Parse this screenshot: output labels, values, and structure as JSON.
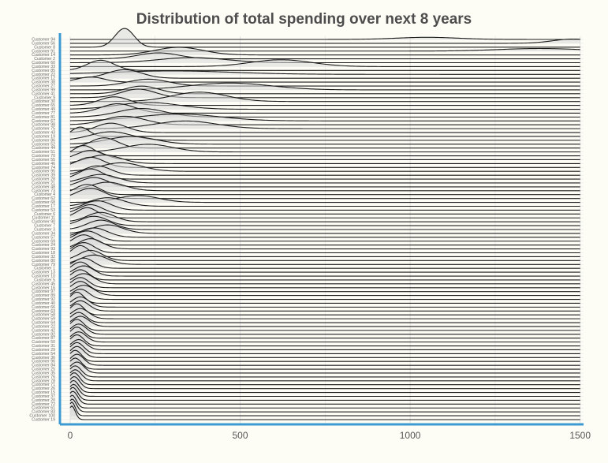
{
  "chart_data": {
    "type": "ridgeline",
    "title": "Distribution of total spending over next 8 years",
    "xlabel": "",
    "ylabel": "",
    "xlim": [
      -30,
      1510
    ],
    "x_ticks": [
      0,
      500,
      1000,
      1500
    ],
    "x_tick_labels": [
      "0",
      "500",
      "1000",
      "1500"
    ],
    "grid": true,
    "series_order_top_to_bottom": [
      {
        "name": "Customer 94",
        "mode": 1050,
        "spread": 90,
        "height": 0.25
      },
      {
        "name": "Customer 56",
        "mode": 1480,
        "spread": 60,
        "height": 0.5
      },
      {
        "name": "Customer 8",
        "mode": 160,
        "spread": 28,
        "height": 2.2
      },
      {
        "name": "Customer 91",
        "mode": 1380,
        "spread": 120,
        "height": 0.3
      },
      {
        "name": "Customer 14",
        "mode": 320,
        "spread": 70,
        "height": 0.9
      },
      {
        "name": "Customer 2",
        "mode": 260,
        "spread": 60,
        "height": 0.7
      },
      {
        "name": "Customer 60",
        "mode": 360,
        "spread": 100,
        "height": 0.6
      },
      {
        "name": "Customer 33",
        "mode": 620,
        "spread": 90,
        "height": 0.8
      },
      {
        "name": "Customer 85",
        "mode": 90,
        "spread": 40,
        "height": 1.2
      },
      {
        "name": "Customer 22",
        "mode": 300,
        "spread": 180,
        "height": 0.4
      },
      {
        "name": "Customer 12",
        "mode": 160,
        "spread": 50,
        "height": 1.0
      },
      {
        "name": "Customer 38",
        "mode": 60,
        "spread": 40,
        "height": 0.6
      },
      {
        "name": "Customer 27",
        "mode": 230,
        "spread": 60,
        "height": 0.8
      },
      {
        "name": "Customer 99",
        "mode": 470,
        "spread": 120,
        "height": 0.8
      },
      {
        "name": "Customer 41",
        "mode": 210,
        "spread": 50,
        "height": 0.9
      },
      {
        "name": "Customer 9",
        "mode": 200,
        "spread": 50,
        "height": 1.0
      },
      {
        "name": "Customer 30",
        "mode": 380,
        "spread": 80,
        "height": 1.1
      },
      {
        "name": "Customer 65",
        "mode": 130,
        "spread": 45,
        "height": 1.0
      },
      {
        "name": "Customer 49",
        "mode": 230,
        "spread": 90,
        "height": 0.8
      },
      {
        "name": "Customer 77",
        "mode": 140,
        "spread": 50,
        "height": 1.1
      },
      {
        "name": "Customer 81",
        "mode": 210,
        "spread": 70,
        "height": 1.0
      },
      {
        "name": "Customer 67",
        "mode": 320,
        "spread": 120,
        "height": 0.8
      },
      {
        "name": "Customer 98",
        "mode": 160,
        "spread": 60,
        "height": 1.0
      },
      {
        "name": "Customer 75",
        "mode": 340,
        "spread": 90,
        "height": 0.9
      },
      {
        "name": "Customer 43",
        "mode": 120,
        "spread": 45,
        "height": 1.1
      },
      {
        "name": "Customer 19",
        "mode": 30,
        "spread": 25,
        "height": 1.1
      },
      {
        "name": "Customer 86",
        "mode": 120,
        "spread": 60,
        "height": 1.0
      },
      {
        "name": "Customer 52",
        "mode": 180,
        "spread": 70,
        "height": 0.9
      },
      {
        "name": "Customer 44",
        "mode": 100,
        "spread": 40,
        "height": 1.2
      },
      {
        "name": "Customer 51",
        "mode": 230,
        "spread": 70,
        "height": 0.9
      },
      {
        "name": "Customer 70",
        "mode": 40,
        "spread": 30,
        "height": 1.2
      },
      {
        "name": "Customer 55",
        "mode": 60,
        "spread": 40,
        "height": 1.1
      },
      {
        "name": "Customer 46",
        "mode": 100,
        "spread": 50,
        "height": 1.0
      },
      {
        "name": "Customer 74",
        "mode": 60,
        "spread": 40,
        "height": 1.2
      },
      {
        "name": "Customer 95",
        "mode": 150,
        "spread": 60,
        "height": 1.0
      },
      {
        "name": "Customer 39",
        "mode": 80,
        "spread": 40,
        "height": 1.1
      },
      {
        "name": "Customer 28",
        "mode": 60,
        "spread": 35,
        "height": 1.2
      },
      {
        "name": "Customer 21",
        "mode": 90,
        "spread": 50,
        "height": 1.0
      },
      {
        "name": "Customer 48",
        "mode": 70,
        "spread": 40,
        "height": 1.1
      },
      {
        "name": "Customer 73",
        "mode": 110,
        "spread": 50,
        "height": 1.0
      },
      {
        "name": "Customer 4",
        "mode": 50,
        "spread": 35,
        "height": 1.2
      },
      {
        "name": "Customer 62",
        "mode": 60,
        "spread": 40,
        "height": 1.2
      },
      {
        "name": "Customer 68",
        "mode": 200,
        "spread": 60,
        "height": 0.8
      },
      {
        "name": "Customer 17",
        "mode": 110,
        "spread": 50,
        "height": 1.0
      },
      {
        "name": "Customer 53",
        "mode": 80,
        "spread": 40,
        "height": 1.1
      },
      {
        "name": "Customer 6",
        "mode": 60,
        "spread": 35,
        "height": 1.1
      },
      {
        "name": "Customer 11",
        "mode": 50,
        "spread": 30,
        "height": 1.2
      },
      {
        "name": "Customer 90",
        "mode": 90,
        "spread": 40,
        "height": 1.1
      },
      {
        "name": "Customer 7",
        "mode": 70,
        "spread": 40,
        "height": 1.1
      },
      {
        "name": "Customer 3",
        "mode": 90,
        "spread": 40,
        "height": 1.1
      },
      {
        "name": "Customer 34",
        "mode": 110,
        "spread": 45,
        "height": 1.0
      },
      {
        "name": "Customer 57",
        "mode": 70,
        "spread": 40,
        "height": 1.1
      },
      {
        "name": "Customer 69",
        "mode": 50,
        "spread": 35,
        "height": 1.2
      },
      {
        "name": "Customer 24",
        "mode": 40,
        "spread": 30,
        "height": 1.2
      },
      {
        "name": "Customer 93",
        "mode": 60,
        "spread": 35,
        "height": 1.2
      },
      {
        "name": "Customer 18",
        "mode": 40,
        "spread": 30,
        "height": 1.2
      },
      {
        "name": "Customer 32",
        "mode": 30,
        "spread": 25,
        "height": 1.3
      },
      {
        "name": "Customer 80",
        "mode": 60,
        "spread": 35,
        "height": 1.2
      },
      {
        "name": "Customer 79",
        "mode": 70,
        "spread": 40,
        "height": 1.1
      },
      {
        "name": "Customer 1",
        "mode": 40,
        "spread": 30,
        "height": 1.2
      },
      {
        "name": "Customer 13",
        "mode": 30,
        "spread": 25,
        "height": 1.2
      },
      {
        "name": "Customer 10",
        "mode": 40,
        "spread": 30,
        "height": 1.2
      },
      {
        "name": "Customer 5",
        "mode": 30,
        "spread": 25,
        "height": 1.2
      },
      {
        "name": "Customer 45",
        "mode": 40,
        "spread": 30,
        "height": 1.2
      },
      {
        "name": "Customer 16",
        "mode": 30,
        "spread": 25,
        "height": 1.2
      },
      {
        "name": "Customer 97",
        "mode": 30,
        "spread": 25,
        "height": 1.2
      },
      {
        "name": "Customer 89",
        "mode": 40,
        "spread": 30,
        "height": 1.2
      },
      {
        "name": "Customer 92",
        "mode": 30,
        "spread": 25,
        "height": 1.2
      },
      {
        "name": "Customer 40",
        "mode": 20,
        "spread": 20,
        "height": 1.3
      },
      {
        "name": "Customer 66",
        "mode": 30,
        "spread": 25,
        "height": 1.2
      },
      {
        "name": "Customer 63",
        "mode": 30,
        "spread": 25,
        "height": 1.2
      },
      {
        "name": "Customer 58",
        "mode": 20,
        "spread": 20,
        "height": 1.3
      },
      {
        "name": "Customer 59",
        "mode": 30,
        "spread": 25,
        "height": 1.2
      },
      {
        "name": "Customer 64",
        "mode": 25,
        "spread": 22,
        "height": 1.2
      },
      {
        "name": "Customer 22",
        "mode": 30,
        "spread": 25,
        "height": 1.2
      },
      {
        "name": "Customer 42",
        "mode": 20,
        "spread": 20,
        "height": 1.3
      },
      {
        "name": "Customer 82",
        "mode": 25,
        "spread": 22,
        "height": 1.2
      },
      {
        "name": "Customer 87",
        "mode": 20,
        "spread": 20,
        "height": 1.3
      },
      {
        "name": "Customer 50",
        "mode": 25,
        "spread": 22,
        "height": 1.2
      },
      {
        "name": "Customer 31",
        "mode": 20,
        "spread": 20,
        "height": 1.3
      },
      {
        "name": "Customer 29",
        "mode": 25,
        "spread": 22,
        "height": 1.2
      },
      {
        "name": "Customer 54",
        "mode": 20,
        "spread": 20,
        "height": 1.3
      },
      {
        "name": "Customer 36",
        "mode": 20,
        "spread": 20,
        "height": 1.3
      },
      {
        "name": "Customer 96",
        "mode": 15,
        "spread": 18,
        "height": 1.3
      },
      {
        "name": "Customer 84",
        "mode": 20,
        "spread": 20,
        "height": 1.3
      },
      {
        "name": "Customer 25",
        "mode": 15,
        "spread": 18,
        "height": 1.3
      },
      {
        "name": "Customer 35",
        "mode": 20,
        "spread": 20,
        "height": 1.3
      },
      {
        "name": "Customer 76",
        "mode": 15,
        "spread": 18,
        "height": 1.3
      },
      {
        "name": "Customer 78",
        "mode": 15,
        "spread": 18,
        "height": 1.3
      },
      {
        "name": "Customer 71",
        "mode": 12,
        "spread": 16,
        "height": 1.4
      },
      {
        "name": "Customer 26",
        "mode": 12,
        "spread": 16,
        "height": 1.4
      },
      {
        "name": "Customer 15",
        "mode": 10,
        "spread": 15,
        "height": 1.4
      },
      {
        "name": "Customer 37",
        "mode": 10,
        "spread": 15,
        "height": 1.4
      },
      {
        "name": "Customer 20",
        "mode": 8,
        "spread": 14,
        "height": 1.5
      },
      {
        "name": "Customer 72",
        "mode": 8,
        "spread": 14,
        "height": 1.5
      },
      {
        "name": "Customer 61",
        "mode": 6,
        "spread": 12,
        "height": 1.5
      },
      {
        "name": "Customer 83",
        "mode": 6,
        "spread": 12,
        "height": 1.5
      },
      {
        "name": "Customer 100",
        "mode": 5,
        "spread": 10,
        "height": 1.6
      },
      {
        "name": "Customer 19",
        "mode": 5,
        "spread": 10,
        "height": 1.6
      }
    ],
    "colors": {
      "background": "#fdfdf6",
      "axis_accent": "#3d9ad1",
      "ridge_fill": "#d9d9d9",
      "ridge_line": "#1a1a1a",
      "grid": "#e3e3e3",
      "title": "#4d4d4d",
      "tick_text": "#555555",
      "label_text": "#666666"
    }
  }
}
